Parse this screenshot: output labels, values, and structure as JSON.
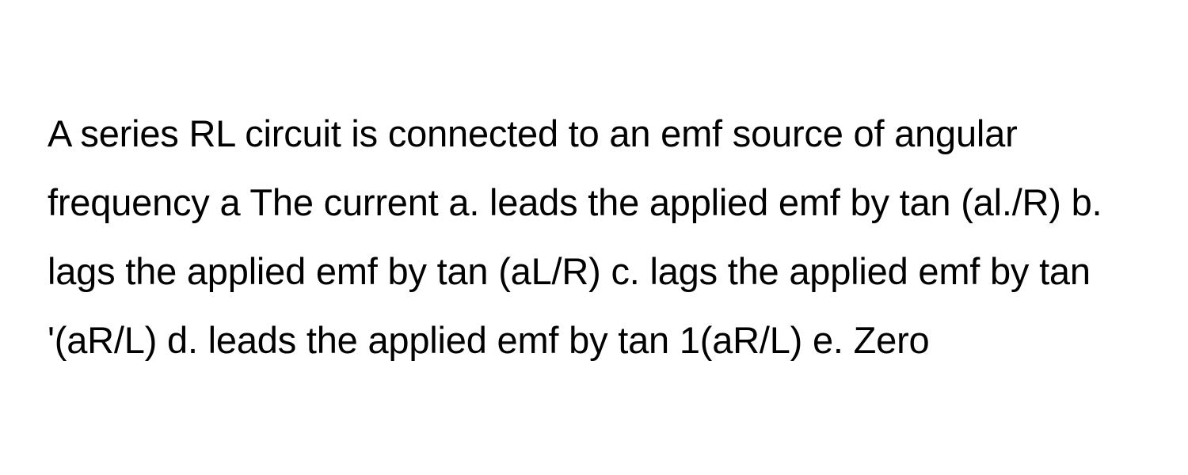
{
  "question": {
    "text": "A series RL circuit is connected to an emf source of angular frequency a The current a. leads the applied emf by tan (al./R) b. lags the applied emf by tan (aL/R) c. lags the applied emf by tan '(aR/L) d. leads the applied emf by tan 1(aR/L) e. Zero",
    "font_size": 47,
    "line_height": 1.85,
    "text_color": "#000000",
    "background_color": "#ffffff"
  }
}
